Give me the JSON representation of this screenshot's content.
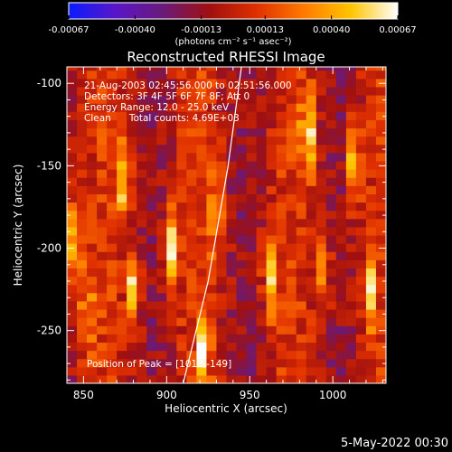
{
  "chart_data": {
    "type": "heatmap",
    "title": "Reconstructed RHESSI Image",
    "xlabel": "Heliocentric X (arcsec)",
    "ylabel": "Heliocentric Y (arcsec)",
    "xlim": [
      840,
      1032
    ],
    "ylim": [
      -282,
      -90
    ],
    "x_ticks": [
      850,
      900,
      950,
      1000
    ],
    "y_ticks": [
      -100,
      -150,
      -200,
      -250
    ],
    "colorbar": {
      "range": [
        -0.00067,
        0.00067
      ],
      "tick_values": [
        -0.00067,
        -0.0004,
        -0.00013,
        0.00013,
        0.0004,
        0.00067
      ],
      "tick_labels": [
        "-0.00067",
        "-0.00040",
        "-0.00013",
        "0.00013",
        "0.00040",
        "0.00067"
      ],
      "unit_label": "(photons cm⁻² s⁻¹ asec⁻²)",
      "colors": [
        "#0a1cff",
        "#5a16c8",
        "#6a1a7a",
        "#a01010",
        "#e03000",
        "#ff7a00",
        "#ffc400",
        "#ffffff"
      ]
    },
    "info_lines": [
      "21-Aug-2003 02:45:56.000 to 02:51:56.000",
      "Detectors: 3F 4F 5F 6F 7F 8F; Att 0",
      "Energy Range: 12.0 - 25.0 keV",
      "Clean      Total counts: 4.69E+03"
    ],
    "peak_label": "Position of Peak = [1013,-149]",
    "bright_stripes": [
      {
        "x": 845,
        "y": -195,
        "value": 0.00067
      },
      {
        "x": 852,
        "y": -240,
        "value": 0.0004
      },
      {
        "x": 874,
        "y": -160,
        "value": 0.0005
      },
      {
        "x": 880,
        "y": -225,
        "value": 0.0006
      },
      {
        "x": 903,
        "y": -198,
        "value": 0.0006
      },
      {
        "x": 922,
        "y": -262,
        "value": 0.0006
      },
      {
        "x": 930,
        "y": -180,
        "value": 0.00045
      },
      {
        "x": 962,
        "y": -215,
        "value": 0.0006
      },
      {
        "x": 985,
        "y": -130,
        "value": 0.00067
      },
      {
        "x": 995,
        "y": -215,
        "value": 0.0004
      },
      {
        "x": 1013,
        "y": -149,
        "value": 0.00067
      },
      {
        "x": 1022,
        "y": -225,
        "value": 0.0005
      }
    ],
    "limb_curve": [
      {
        "x": 910,
        "y": -282
      },
      {
        "x": 925,
        "y": -220
      },
      {
        "x": 937,
        "y": -150
      },
      {
        "x": 945,
        "y": -90
      }
    ]
  },
  "footer": {
    "date": "5-May-2022 00:30"
  }
}
